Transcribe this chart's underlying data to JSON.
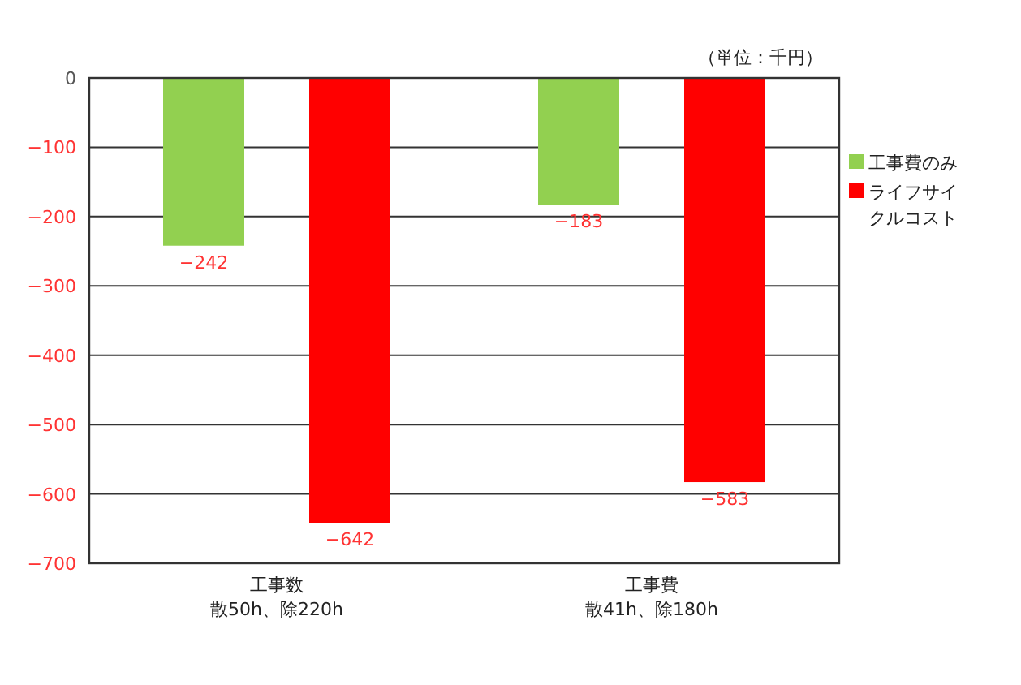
{
  "chart_data": {
    "type": "bar",
    "categories": [
      "工事数",
      "工事費"
    ],
    "series": [
      {
        "name": "工事費のみ",
        "color": "#92d050",
        "values": [
          -242,
          -183
        ]
      },
      {
        "name": "ライフサイクルコスト",
        "color": "#ff0000",
        "values": [
          -642,
          -583
        ]
      }
    ],
    "ylim": [
      -700,
      0
    ],
    "yticks": [
      0,
      -100,
      -200,
      -300,
      -400,
      -500,
      -600,
      -700
    ],
    "grid": "y",
    "legend": "right",
    "data_labels": true,
    "annotations": [
      "（単位：千円）",
      "散50h、除220h",
      "散41h、除180h"
    ]
  }
}
